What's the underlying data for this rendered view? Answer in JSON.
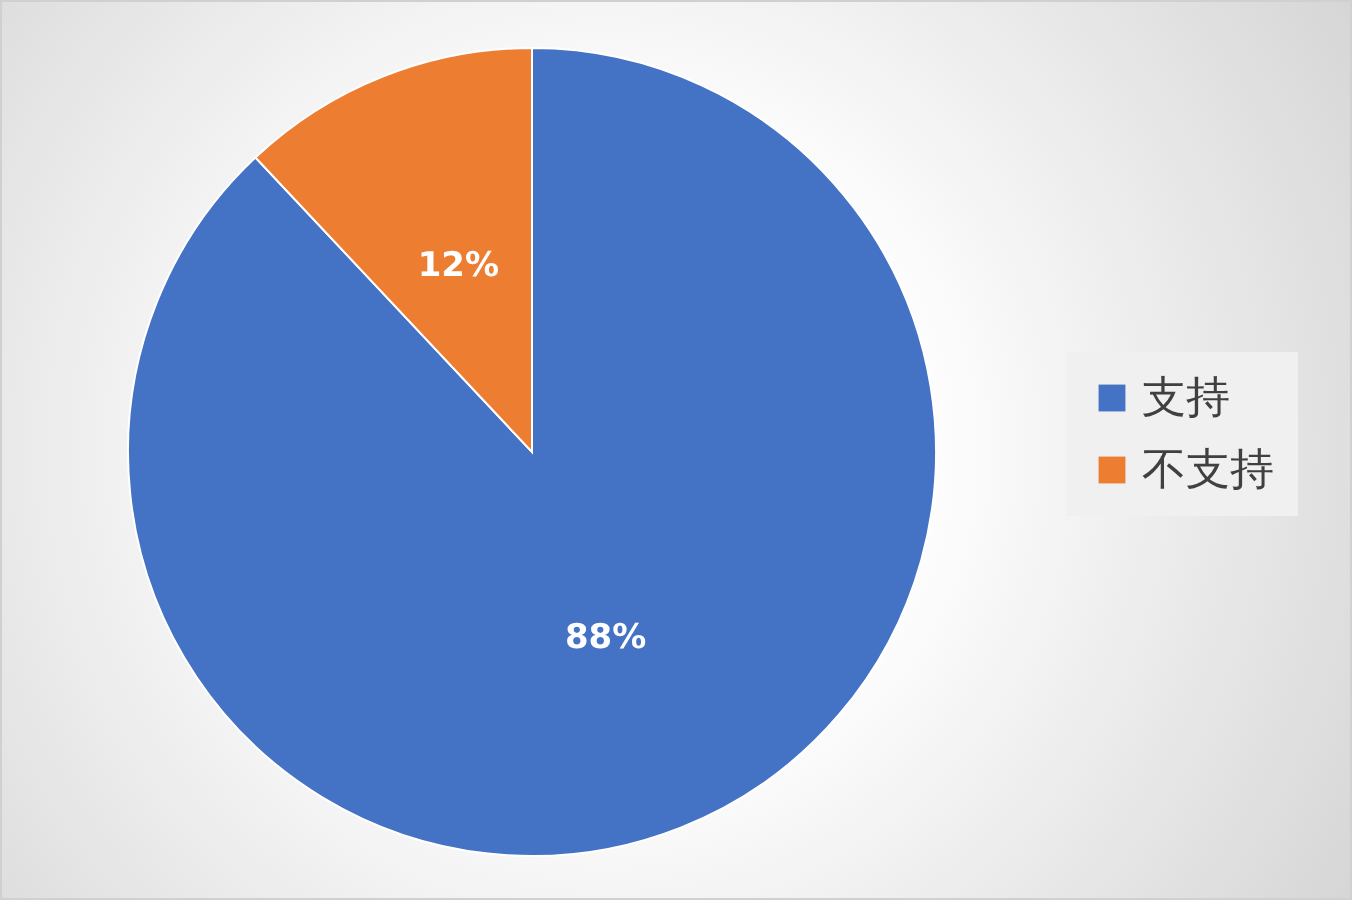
{
  "chart_data": {
    "type": "pie",
    "categories": [
      "支持",
      "不支持"
    ],
    "values": [
      88,
      12
    ],
    "colors": [
      "#4472c4",
      "#ed7d31"
    ],
    "value_labels": [
      "88%",
      "12%"
    ],
    "legend": "right"
  }
}
